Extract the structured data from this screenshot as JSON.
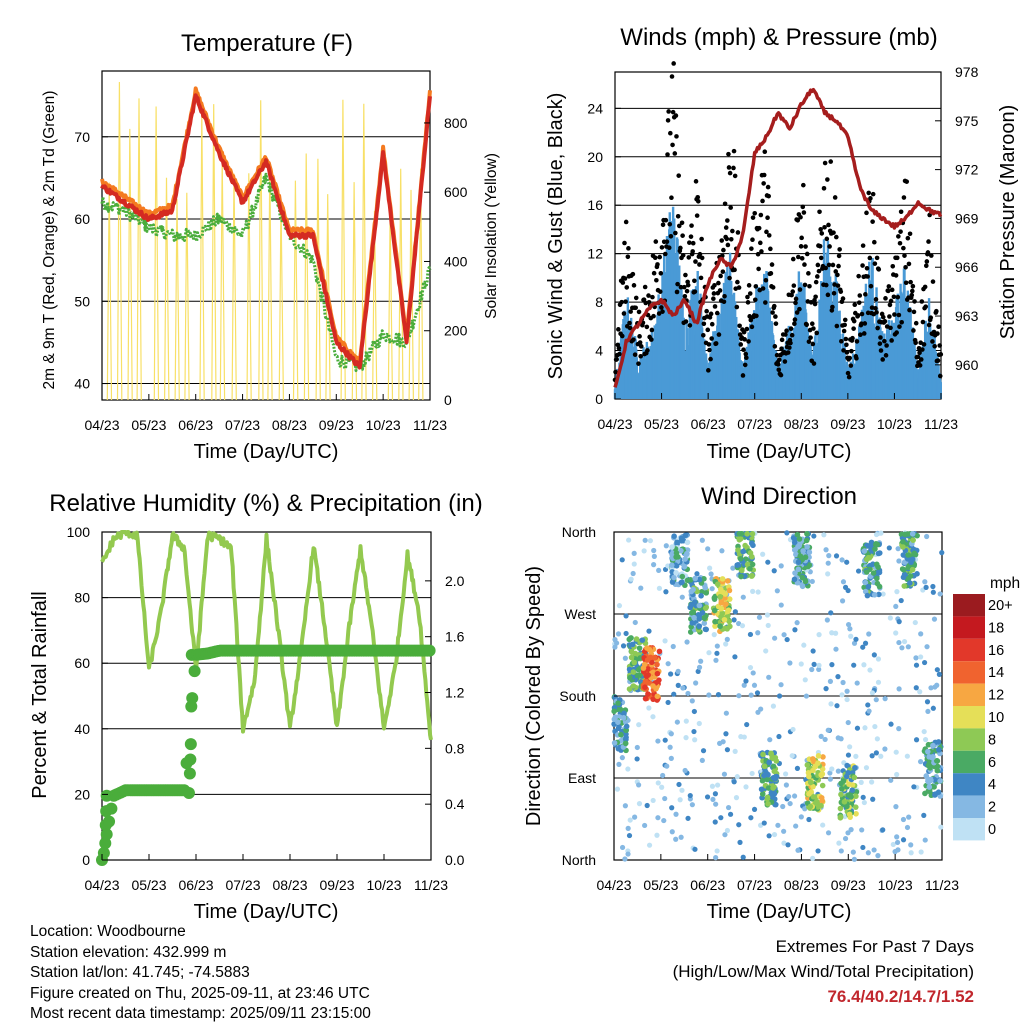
{
  "colors": {
    "temp2m": "#d42a22",
    "temp9m": "#f47a20",
    "dewpoint": "#4aad3b",
    "solar": "#f8e067",
    "sonic_wind": "#4a9ad6",
    "gust": "#000000",
    "pressure": "#a51d1d",
    "rh": "#93c94f",
    "precip": "#4aad3b",
    "extremes_value": "#c1272d"
  },
  "info": {
    "location": "Location: Woodbourne",
    "elevation": "Station elevation: 432.999 m",
    "latlon": "Station lat/lon: 41.745; -74.5883",
    "created": "Figure created on Thu, 2025-09-11, at 23:46 UTC",
    "recent": "Most recent data timestamp: 2025/09/11 23:15:00"
  },
  "extremes": {
    "line1": "Extremes For Past 7 Days",
    "line2": "(High/Low/Max Wind/Total Precipitation)",
    "values": "76.4/40.2/14.7/1.52"
  },
  "chart_data": [
    {
      "type": "line",
      "title": "Temperature (F)",
      "xlabel": "Time (Day/UTC)",
      "ylabel": "2m & 9m T (Red, Orange) & 2m Td (Green)",
      "ylabel_right": "Solar Insolation (Yellow)",
      "x_ticks": [
        "04/23",
        "05/23",
        "06/23",
        "07/23",
        "08/23",
        "09/23",
        "10/23",
        "11/23"
      ],
      "ylim": [
        38,
        78
      ],
      "y_ticks": [
        40,
        50,
        60,
        70
      ],
      "ylim_right": [
        0,
        950
      ],
      "y_ticks_right": [
        0,
        200,
        400,
        600,
        800
      ],
      "grid": "horizontal",
      "x": [
        0,
        0.5,
        1,
        1.5,
        2,
        2.5,
        3,
        3.5,
        4,
        4.5,
        5,
        5.5,
        6,
        6.5,
        7
      ],
      "series": [
        {
          "name": "2m T",
          "values": [
            64,
            62,
            60,
            61,
            75,
            68,
            62,
            67,
            58,
            58,
            45,
            42,
            68,
            45,
            75
          ]
        },
        {
          "name": "2m Td",
          "values": [
            62,
            61,
            59,
            58,
            58,
            60,
            58,
            65,
            58,
            55,
            43,
            42,
            46,
            45,
            54
          ]
        },
        {
          "name": "Solar",
          "values": [
            0,
            880,
            0,
            900,
            0,
            900,
            0,
            880,
            0,
            920,
            0,
            900,
            0,
            880,
            0
          ]
        }
      ]
    },
    {
      "type": "line",
      "title": "Winds (mph) & Pressure (mb)",
      "xlabel": "Time (Day/UTC)",
      "ylabel": "Sonic Wind & Gust (Blue, Black)",
      "ylabel_right": "Station Pressure (Maroon)",
      "x_ticks": [
        "04/23",
        "05/23",
        "06/23",
        "07/23",
        "08/23",
        "09/23",
        "10/23",
        "11/23"
      ],
      "ylim": [
        0,
        27
      ],
      "y_ticks": [
        0,
        4,
        8,
        12,
        16,
        20,
        24
      ],
      "ylim_right": [
        957.9,
        978
      ],
      "y_ticks_right": [
        960,
        963,
        966,
        969,
        972,
        975,
        978
      ],
      "grid": "horizontal",
      "x": [
        0,
        0.25,
        0.5,
        0.75,
        1,
        1.25,
        1.5,
        1.75,
        2,
        2.25,
        2.5,
        2.75,
        3,
        3.25,
        3.5,
        3.75,
        4,
        4.25,
        4.5,
        4.75,
        5,
        5.25,
        5.5,
        5.75,
        6,
        6.25,
        6.5,
        6.75,
        7
      ],
      "series": [
        {
          "name": "Sonic Wind",
          "values": [
            1,
            7,
            3,
            4,
            8,
            14,
            5,
            9,
            3,
            6,
            10,
            2,
            7,
            9,
            2,
            5,
            9,
            3,
            11,
            8,
            2,
            5,
            10,
            4,
            6,
            9,
            2,
            7,
            1
          ]
        },
        {
          "name": "Gust",
          "values": [
            3,
            13,
            6,
            9,
            15,
            24,
            9,
            17,
            5,
            12,
            21,
            4,
            14,
            18,
            3,
            8,
            17,
            5,
            19,
            14,
            3,
            9,
            16,
            6,
            10,
            16,
            4,
            13,
            3
          ]
        },
        {
          "name": "Pressure",
          "values": [
            958.5,
            961.5,
            962.5,
            963.5,
            964,
            963,
            964,
            962.5,
            965,
            966.5,
            966,
            968,
            973,
            974,
            975.5,
            974.5,
            976,
            977,
            975.5,
            975,
            974,
            971,
            969.5,
            969,
            968.5,
            969,
            970,
            969.5,
            969.2
          ]
        }
      ]
    },
    {
      "type": "line",
      "title": "Relative Humidity (%) & Precipitation (in)",
      "xlabel": "Time (Day/UTC)",
      "ylabel": "Percent & Total Rainfall",
      "x_ticks": [
        "04/23",
        "05/23",
        "06/23",
        "07/23",
        "08/23",
        "09/23",
        "10/23",
        "11/23"
      ],
      "ylim": [
        0,
        100
      ],
      "y_ticks": [
        0,
        20,
        40,
        60,
        80,
        100
      ],
      "ylim_right": [
        0,
        2.35
      ],
      "y_ticks_right": [
        "0.0",
        "0.4",
        "0.8",
        "1.2",
        "1.6",
        "2.0"
      ],
      "grid": "horizontal",
      "x": [
        0,
        0.25,
        0.5,
        0.75,
        1,
        1.25,
        1.5,
        1.75,
        2,
        2.25,
        2.5,
        2.75,
        3,
        3.25,
        3.5,
        3.75,
        4,
        4.25,
        4.5,
        4.75,
        5,
        5.25,
        5.5,
        5.75,
        6,
        6.25,
        6.5,
        6.75,
        7
      ],
      "series": [
        {
          "name": "RH",
          "values": [
            90,
            98,
            100,
            99,
            58,
            75,
            99,
            95,
            58,
            99,
            98,
            95,
            40,
            55,
            98,
            70,
            40,
            65,
            96,
            70,
            40,
            70,
            95,
            70,
            40,
            60,
            93,
            75,
            36
          ]
        },
        {
          "name": "Precip",
          "values": [
            0,
            0.46,
            0.5,
            0.5,
            0.5,
            0.5,
            0.5,
            0.5,
            1.47,
            1.48,
            1.5,
            1.5,
            1.5,
            1.5,
            1.5,
            1.5,
            1.5,
            1.5,
            1.5,
            1.5,
            1.5,
            1.5,
            1.5,
            1.5,
            1.5,
            1.5,
            1.5,
            1.5,
            1.5
          ]
        }
      ]
    },
    {
      "type": "scatter",
      "title": "Wind Direction",
      "xlabel": "Time (Day/UTC)",
      "ylabel": "Direction (Colored By Speed)",
      "x_ticks": [
        "04/23",
        "05/23",
        "06/23",
        "07/23",
        "08/23",
        "09/23",
        "10/23",
        "11/23"
      ],
      "y_ticks": [
        "North",
        "East",
        "South",
        "West",
        "North"
      ],
      "ylim": [
        0,
        360
      ],
      "grid": "horizontal",
      "legend_title": "mph",
      "legend_labels": [
        "20+",
        "18",
        "16",
        "14",
        "12",
        "10",
        "8",
        "6",
        "4",
        "2",
        "0"
      ],
      "legend_colors": [
        "#9b1b1f",
        "#c4191f",
        "#e2382a",
        "#f0632f",
        "#f7a742",
        "#e5df58",
        "#8ec955",
        "#4aaa64",
        "#3f86c4",
        "#85b8e3",
        "#bfe1f4"
      ],
      "clusters": [
        {
          "x": 0.1,
          "dir": 150,
          "speed": 4
        },
        {
          "x": 0.5,
          "dir": 215,
          "speed": 6
        },
        {
          "x": 0.8,
          "dir": 205,
          "speed": 14
        },
        {
          "x": 1.4,
          "dir": 330,
          "speed": 3
        },
        {
          "x": 1.8,
          "dir": 280,
          "speed": 5
        },
        {
          "x": 2.3,
          "dir": 280,
          "speed": 9
        },
        {
          "x": 2.8,
          "dir": 340,
          "speed": 6
        },
        {
          "x": 3.3,
          "dir": 90,
          "speed": 6
        },
        {
          "x": 4.0,
          "dir": 330,
          "speed": 4
        },
        {
          "x": 4.3,
          "dir": 85,
          "speed": 9
        },
        {
          "x": 5.0,
          "dir": 75,
          "speed": 7
        },
        {
          "x": 5.5,
          "dir": 320,
          "speed": 5
        },
        {
          "x": 6.3,
          "dir": 330,
          "speed": 5
        },
        {
          "x": 6.8,
          "dir": 100,
          "speed": 4
        }
      ]
    }
  ]
}
